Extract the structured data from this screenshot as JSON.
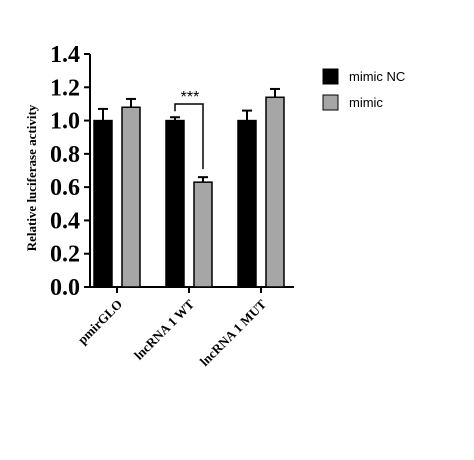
{
  "chart_data": {
    "type": "bar",
    "categories": [
      "pmirGLO",
      "lncRNA 1 WT",
      "lncRNA 1 MUT"
    ],
    "series": [
      {
        "name": "mimic NC",
        "values": [
          1.0,
          1.0,
          1.0
        ],
        "errors": [
          0.07,
          0.02,
          0.06
        ],
        "color": "#000000"
      },
      {
        "name": "mimic",
        "values": [
          1.08,
          0.63,
          1.14
        ],
        "errors": [
          0.05,
          0.03,
          0.05
        ],
        "color": "#a6a6a6"
      }
    ],
    "ylabel": "Relative luciferase activity",
    "ylim": [
      0,
      1.4
    ],
    "yticks": [
      "0.0",
      "0.2",
      "0.4",
      "0.6",
      "0.8",
      "1.0",
      "1.2",
      "1.4"
    ],
    "legend_position": "top-right",
    "annotations": [
      {
        "text": "***",
        "category": "lncRNA 1 WT",
        "between": [
          "mimic NC",
          "mimic"
        ]
      }
    ],
    "grid": false
  }
}
